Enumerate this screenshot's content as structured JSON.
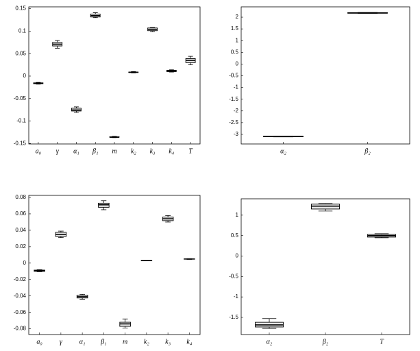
{
  "chart_data": [
    {
      "type": "box",
      "categories": [
        "a₀",
        "γ",
        "α₁",
        "β₁",
        "m",
        "k₂",
        "k₃",
        "k₄",
        "T"
      ],
      "min": [
        -0.018,
        0.062,
        -0.0808,
        0.13,
        -0.137,
        0.007,
        0.099,
        0.009,
        0.025
      ],
      "q1": [
        -0.017,
        0.067,
        -0.0777,
        0.1315,
        -0.136,
        0.008,
        0.101,
        0.01,
        0.03
      ],
      "median": [
        -0.016,
        0.071,
        -0.0754,
        0.1346,
        -0.136,
        0.0085,
        0.104,
        0.0115,
        0.035
      ],
      "q3": [
        -0.015,
        0.075,
        -0.0715,
        0.138,
        -0.135,
        0.009,
        0.107,
        0.013,
        0.039
      ],
      "max": [
        -0.014,
        0.079,
        -0.0685,
        0.141,
        -0.134,
        0.01,
        0.108,
        0.014,
        0.044
      ],
      "ylim": [
        -0.151,
        0.154
      ],
      "yticks": [
        -0.15,
        -0.1,
        -0.05,
        0,
        0.05,
        0.1,
        0.15
      ]
    },
    {
      "type": "box",
      "categories": [
        "α₂",
        "β₂"
      ],
      "min": [
        -3.11,
        2.16
      ],
      "q1": [
        -3.1,
        2.17
      ],
      "median": [
        -3.09,
        2.18
      ],
      "q3": [
        -3.08,
        2.19
      ],
      "max": [
        -3.07,
        2.2
      ],
      "ylim": [
        -3.41,
        2.44
      ],
      "yticks": [
        -3,
        -2.5,
        -2,
        -1.5,
        -1,
        -0.5,
        0,
        0.5,
        1,
        1.5,
        2
      ]
    },
    {
      "type": "box",
      "categories": [
        "a₀",
        "γ",
        "α₁",
        "β₁",
        "m",
        "k₂",
        "k₃",
        "k₄"
      ],
      "min": [
        -0.0105,
        0.031,
        -0.044,
        0.065,
        -0.079,
        0.003,
        0.05,
        0.0045
      ],
      "q1": [
        -0.01,
        0.0325,
        -0.0425,
        0.068,
        -0.077,
        0.0032,
        0.0517,
        0.0048
      ],
      "median": [
        -0.0092,
        0.035,
        -0.041,
        0.071,
        -0.074,
        0.0033,
        0.054,
        0.005
      ],
      "q3": [
        -0.0085,
        0.0375,
        -0.039,
        0.073,
        -0.072,
        0.0034,
        0.056,
        0.0052
      ],
      "max": [
        -0.008,
        0.039,
        -0.038,
        0.076,
        -0.068,
        0.0036,
        0.058,
        0.0055
      ],
      "ylim": [
        -0.087,
        0.0825
      ],
      "yticks": [
        -0.08,
        -0.06,
        -0.04,
        -0.02,
        0,
        0.02,
        0.04,
        0.06,
        0.08
      ]
    },
    {
      "type": "box",
      "categories": [
        "α₂",
        "β₂",
        "T"
      ],
      "min": [
        -1.77,
        1.1,
        0.446
      ],
      "q1": [
        -1.735,
        1.15,
        0.463
      ],
      "median": [
        -1.685,
        1.22,
        0.497
      ],
      "q3": [
        -1.62,
        1.27,
        0.53
      ],
      "max": [
        -1.53,
        1.285,
        0.547
      ],
      "ylim": [
        -1.92,
        1.4
      ],
      "yticks": [
        -1.5,
        -1,
        -0.5,
        0,
        0.5,
        1
      ]
    }
  ]
}
